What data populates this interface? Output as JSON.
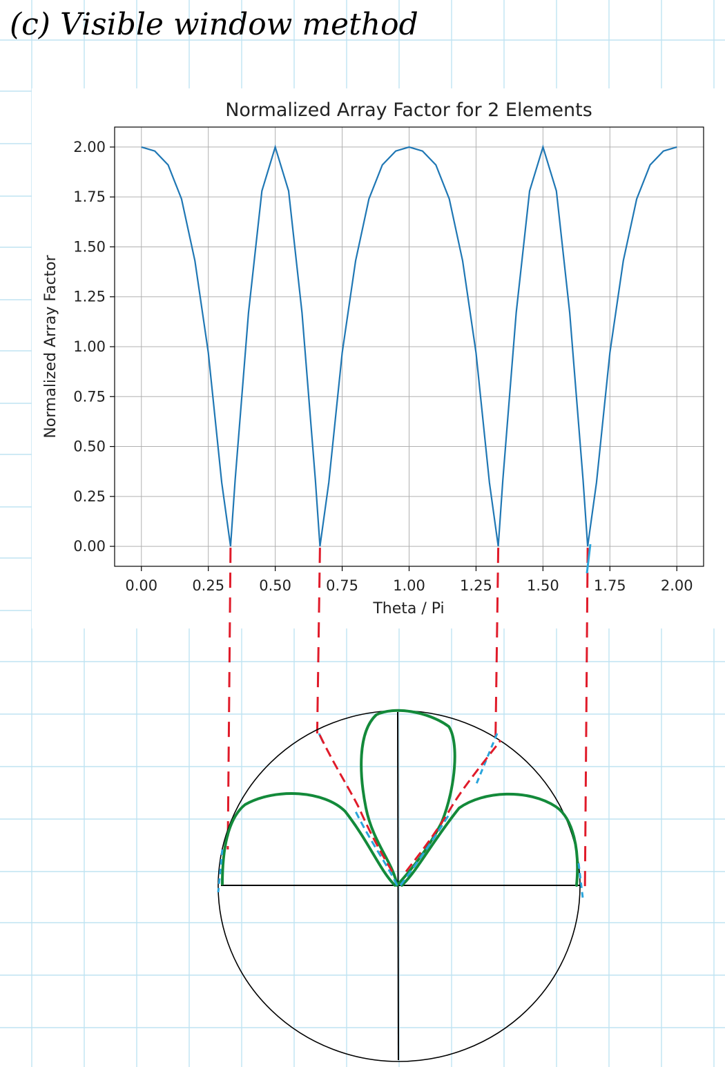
{
  "note": {
    "heading": "(c) Visible window method"
  },
  "colors": {
    "grid_paper": "#bfe3f2",
    "curve": "#1f77b4",
    "red_pen": "#e01b2a",
    "green_pen": "#138a3a",
    "blue_pen": "#2aa5dc",
    "ink": "#000000"
  },
  "chart_data": {
    "type": "line",
    "title": "Normalized Array Factor for 2 Elements",
    "xlabel": "Theta / Pi",
    "ylabel": "Normalized Array Factor",
    "xlim": [
      -0.1,
      2.1
    ],
    "ylim": [
      -0.1,
      2.1
    ],
    "xticks": [
      0.0,
      0.25,
      0.5,
      0.75,
      1.0,
      1.25,
      1.5,
      1.75,
      2.0
    ],
    "xtick_labels": [
      "0.00",
      "0.25",
      "0.50",
      "0.75",
      "1.00",
      "1.25",
      "1.50",
      "1.75",
      "2.00"
    ],
    "yticks": [
      0.0,
      0.25,
      0.5,
      0.75,
      1.0,
      1.25,
      1.5,
      1.75,
      2.0
    ],
    "ytick_labels": [
      "0.00",
      "0.25",
      "0.50",
      "0.75",
      "1.00",
      "1.25",
      "1.50",
      "1.75",
      "2.00"
    ],
    "grid": true,
    "legend": "none",
    "series": [
      {
        "x": [
          0.0,
          0.05,
          0.1,
          0.15,
          0.2,
          0.25,
          0.3,
          0.333,
          0.35,
          0.4,
          0.45,
          0.5,
          0.55,
          0.6,
          0.65,
          0.667,
          0.7,
          0.75,
          0.8,
          0.85,
          0.9,
          0.95,
          1.0,
          1.05,
          1.1,
          1.15,
          1.2,
          1.25,
          1.3,
          1.333,
          1.35,
          1.4,
          1.45,
          1.5,
          1.55,
          1.6,
          1.65,
          1.667,
          1.7,
          1.75,
          1.8,
          1.85,
          1.9,
          1.95,
          2.0
        ],
        "y": [
          2.0,
          1.98,
          1.91,
          1.74,
          1.43,
          0.97,
          0.32,
          0.0,
          0.33,
          1.17,
          1.78,
          2.0,
          1.78,
          1.17,
          0.33,
          0.0,
          0.32,
          0.97,
          1.43,
          1.74,
          1.91,
          1.98,
          2.0,
          1.98,
          1.91,
          1.74,
          1.43,
          0.97,
          0.32,
          0.0,
          0.33,
          1.17,
          1.78,
          2.0,
          1.78,
          1.17,
          0.33,
          0.0,
          0.32,
          0.97,
          1.43,
          1.74,
          1.91,
          1.98,
          2.0
        ]
      }
    ]
  }
}
